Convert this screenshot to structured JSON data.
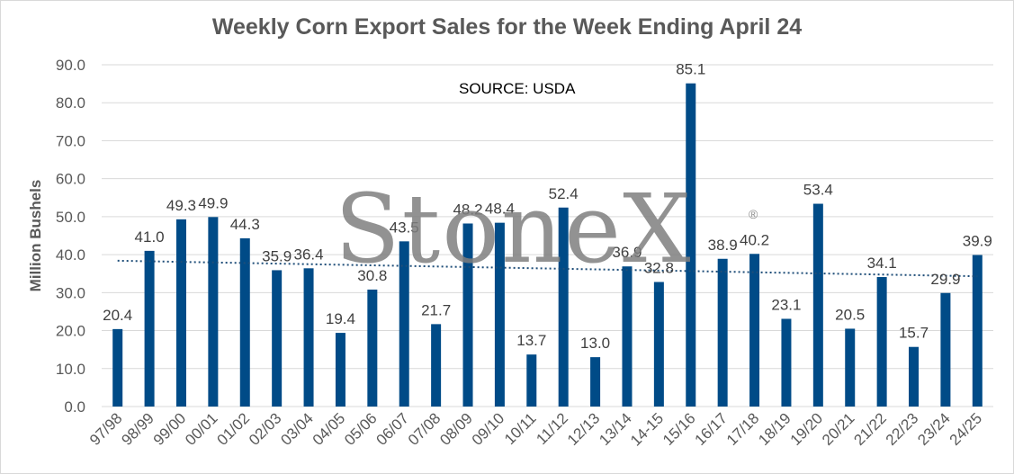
{
  "chart_data": {
    "type": "bar",
    "title": "Weekly Corn Export Sales for the Week Ending April 24",
    "ylabel": "Million Bushels",
    "xlabel": "",
    "annotation": "SOURCE: USDA",
    "watermark": "StoneX",
    "watermark_mark": "®",
    "ylim": [
      0,
      90
    ],
    "yticks": [
      "0.0",
      "10.0",
      "20.0",
      "30.0",
      "40.0",
      "50.0",
      "60.0",
      "70.0",
      "80.0",
      "90.0"
    ],
    "grid": true,
    "categories": [
      "97/98",
      "98/99",
      "99/00",
      "00/01",
      "01/02",
      "02/03",
      "03/04",
      "04/05",
      "05/06",
      "06/07",
      "07/08",
      "08/09",
      "09/10",
      "10/11",
      "11/12",
      "12/13",
      "13/14",
      "14-15",
      "15/16",
      "16/17",
      "17/18",
      "18/19",
      "19/20",
      "20/21",
      "21/22",
      "22/23",
      "23/24",
      "24/25"
    ],
    "values": [
      20.4,
      41.0,
      49.3,
      49.9,
      44.3,
      35.9,
      36.4,
      19.4,
      30.8,
      43.5,
      21.7,
      48.2,
      48.4,
      13.7,
      52.4,
      13.0,
      36.9,
      32.8,
      85.1,
      38.9,
      40.2,
      23.1,
      53.4,
      20.5,
      34.1,
      15.7,
      29.9,
      39.9
    ],
    "data_labels": [
      "20.4",
      "41.0",
      "49.3",
      "49.9",
      "44.3",
      "35.9",
      "36.4",
      "19.4",
      "30.8",
      "43.5",
      "21.7",
      "48.2",
      "48.4",
      "13.7",
      "52.4",
      "13.0",
      "36.9",
      "32.8",
      "85.1",
      "38.9",
      "40.2",
      "23.1",
      "53.4",
      "20.5",
      "34.1",
      "15.7",
      "29.9",
      "39.9"
    ],
    "trendline": {
      "type": "linear",
      "start": 38.4,
      "end": 34.3
    },
    "colors": {
      "bar": "#004b87",
      "trend": "#1f4e79",
      "grid": "#d9d9d9",
      "text": "#595959"
    }
  }
}
